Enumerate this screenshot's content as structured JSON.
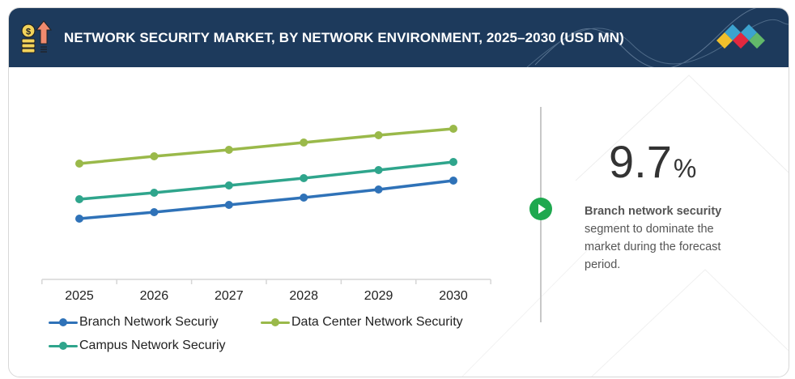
{
  "header": {
    "title": "NETWORK SECURITY MARKET, BY NETWORK ENVIRONMENT, 2025–2030 (USD MN)",
    "icon": "money-growth-icon",
    "logo": "brand-diamonds-logo",
    "background_color": "#1d3a5c"
  },
  "highlight": {
    "value": "9.7",
    "unit": "%",
    "desc_bold": "Branch network security",
    "desc_rest": " segment to dominate the market during the forecast period.",
    "play_icon": "play-circle-icon",
    "accent_color": "#1fa84f"
  },
  "chart_data": {
    "type": "line",
    "title": "NETWORK SECURITY MARKET, BY NETWORK ENVIRONMENT, 2025–2030 (USD MN)",
    "xlabel": "",
    "ylabel": "",
    "y_axis_visible": false,
    "grid": false,
    "legend_position": "bottom-left",
    "categories": [
      "2025",
      "2026",
      "2027",
      "2028",
      "2029",
      "2030"
    ],
    "ylim": [
      0,
      100
    ],
    "values_note": "No y-axis scale shown; values are relative estimates",
    "series": [
      {
        "name": "Branch Network Securiy",
        "color": "#2f72b8",
        "values": [
          30,
          34,
          38.5,
          43,
          48,
          53.5
        ]
      },
      {
        "name": "Data Center Network Security",
        "color": "#9ab94a",
        "values": [
          64,
          68.5,
          72.5,
          77,
          81.5,
          85.5
        ]
      },
      {
        "name": "Campus Network Securiy",
        "color": "#2fa58c",
        "values": [
          42,
          46,
          50.5,
          55,
          60,
          65
        ]
      }
    ]
  }
}
